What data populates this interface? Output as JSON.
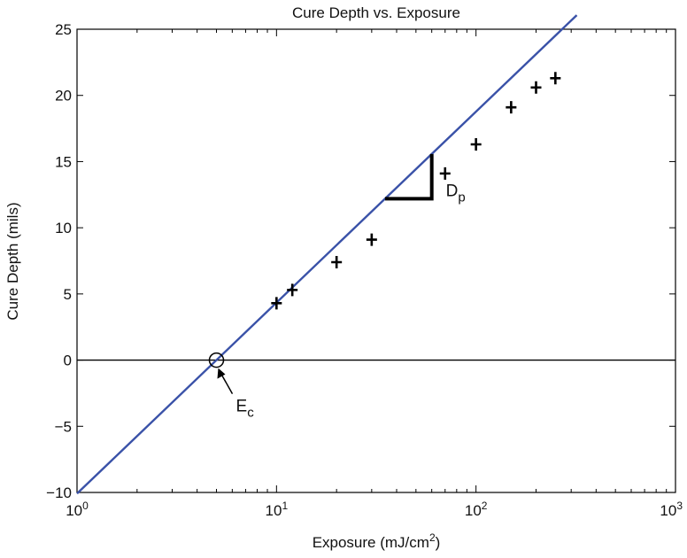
{
  "chart_data": {
    "type": "scatter",
    "title": "Cure Depth vs. Exposure",
    "xlabel": "Exposure (mJ/cm",
    "xlabel_sup": "2",
    "xlabel_end": ")",
    "ylabel": "Cure Depth (mils)",
    "xscale": "log",
    "xlim": [
      1,
      1000
    ],
    "ylim": [
      -10,
      25
    ],
    "x_ticks": [
      {
        "value": 1,
        "base": "10",
        "exp": "0"
      },
      {
        "value": 10,
        "base": "10",
        "exp": "1"
      },
      {
        "value": 100,
        "base": "10",
        "exp": "2"
      },
      {
        "value": 1000,
        "base": "10",
        "exp": "3"
      }
    ],
    "y_ticks": [
      {
        "value": -10,
        "label": "−10"
      },
      {
        "value": -5,
        "label": "−5"
      },
      {
        "value": 0,
        "label": "0"
      },
      {
        "value": 5,
        "label": "5"
      },
      {
        "value": 10,
        "label": "10"
      },
      {
        "value": 15,
        "label": "15"
      },
      {
        "value": 20,
        "label": "20"
      },
      {
        "value": 25,
        "label": "25"
      }
    ],
    "grid": false,
    "points": [
      {
        "x": 10,
        "y": 4.3
      },
      {
        "x": 12,
        "y": 5.3
      },
      {
        "x": 20,
        "y": 7.4
      },
      {
        "x": 30,
        "y": 9.1
      },
      {
        "x": 70,
        "y": 14.1
      },
      {
        "x": 100,
        "y": 16.3
      },
      {
        "x": 150,
        "y": 19.1
      },
      {
        "x": 200,
        "y": 20.6
      },
      {
        "x": 250,
        "y": 21.3
      }
    ],
    "fit_line": {
      "color": "#3a52a8",
      "x_start": 1,
      "x_end": 320,
      "slope_per_decade": 14.43,
      "x_intercept": 5
    },
    "reference_line": {
      "y": 0
    },
    "annotations": {
      "ec": {
        "x": 5,
        "y": 0,
        "label": "E",
        "sub": "c"
      },
      "dp": {
        "x1": 35,
        "x2": 60,
        "label": "D",
        "sub": "p"
      }
    },
    "colors": {
      "fit": "#3a52a8",
      "points": "#000000",
      "axes": "#000000"
    }
  }
}
